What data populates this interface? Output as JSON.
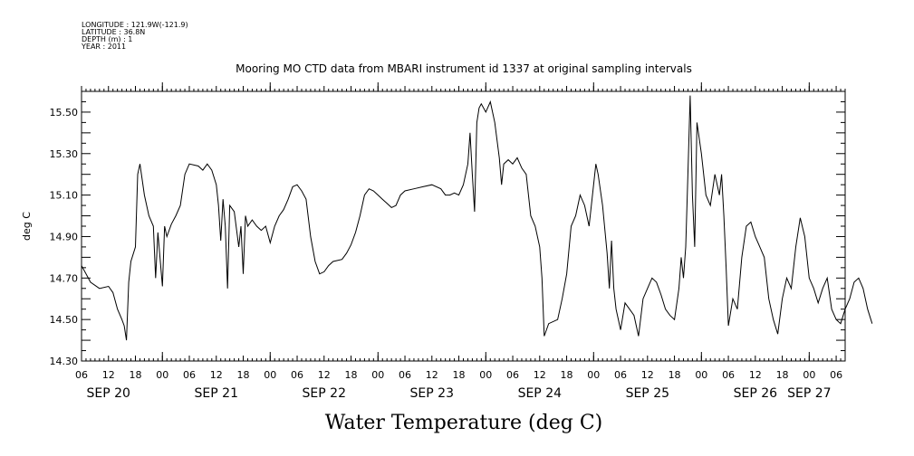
{
  "header": {
    "longitude": "LONGITUDE : 121.9W(-121.9)",
    "latitude": "LATITUDE : 36.8N",
    "depth": "DEPTH (m) : 1",
    "year": "YEAR : 2011"
  },
  "chart_data": {
    "type": "line",
    "title": "Mooring MO CTD data from MBARI instrument id 1337 at original sampling intervals",
    "ylabel": "deg C",
    "xlabel": "Water Temperature (deg C)",
    "ylim": [
      14.3,
      15.6
    ],
    "yticks": [
      "14.30",
      "14.50",
      "14.70",
      "14.90",
      "15.10",
      "15.30",
      "15.50"
    ],
    "xlim": [
      "SEP 20 06:00",
      "SEP 27 08:00"
    ],
    "hour_ticks": [
      "06",
      "12",
      "18",
      "00",
      "06",
      "12",
      "18",
      "00",
      "06",
      "12",
      "18",
      "00",
      "06",
      "12",
      "18",
      "00",
      "06",
      "12",
      "18",
      "00",
      "06",
      "12",
      "18",
      "00",
      "06",
      "12",
      "18",
      "00",
      "06"
    ],
    "date_labels": [
      "SEP 20",
      "SEP 21",
      "SEP 22",
      "SEP 23",
      "SEP 24",
      "SEP 25",
      "SEP 26",
      "SEP 27"
    ],
    "grid": false,
    "series": [
      {
        "points": [
          [
            "SEP 20 06:00",
            14.76
          ],
          [
            "SEP 20 07:00",
            14.72
          ],
          [
            "SEP 20 08:00",
            14.68
          ],
          [
            "SEP 20 10:00",
            14.65
          ],
          [
            "SEP 20 12:00",
            14.66
          ],
          [
            "SEP 20 13:00",
            14.63
          ],
          [
            "SEP 20 14:00",
            14.55
          ],
          [
            "SEP 20 15:00",
            14.5
          ],
          [
            "SEP 20 15:30",
            14.47
          ],
          [
            "SEP 20 16:00",
            14.4
          ],
          [
            "SEP 20 16:30",
            14.68
          ],
          [
            "SEP 20 17:00",
            14.78
          ],
          [
            "SEP 20 18:00",
            14.85
          ],
          [
            "SEP 20 18:30",
            15.2
          ],
          [
            "SEP 20 19:00",
            15.25
          ],
          [
            "SEP 20 20:00",
            15.1
          ],
          [
            "SEP 20 21:00",
            15.0
          ],
          [
            "SEP 20 22:00",
            14.95
          ],
          [
            "SEP 20 22:30",
            14.7
          ],
          [
            "SEP 20 23:00",
            14.92
          ],
          [
            "SEP 21 00:00",
            14.66
          ],
          [
            "SEP 21 00:30",
            14.95
          ],
          [
            "SEP 21 01:00",
            14.9
          ],
          [
            "SEP 21 02:00",
            14.96
          ],
          [
            "SEP 21 03:00",
            15.0
          ],
          [
            "SEP 21 04:00",
            15.05
          ],
          [
            "SEP 21 05:00",
            15.2
          ],
          [
            "SEP 21 06:00",
            15.25
          ],
          [
            "SEP 21 08:00",
            15.24
          ],
          [
            "SEP 21 09:00",
            15.22
          ],
          [
            "SEP 21 10:00",
            15.25
          ],
          [
            "SEP 21 11:00",
            15.22
          ],
          [
            "SEP 21 12:00",
            15.15
          ],
          [
            "SEP 21 12:30",
            15.05
          ],
          [
            "SEP 21 13:00",
            14.88
          ],
          [
            "SEP 21 13:30",
            15.08
          ],
          [
            "SEP 21 14:00",
            14.95
          ],
          [
            "SEP 21 14:30",
            14.65
          ],
          [
            "SEP 21 15:00",
            15.05
          ],
          [
            "SEP 21 16:00",
            15.02
          ],
          [
            "SEP 21 17:00",
            14.85
          ],
          [
            "SEP 21 17:30",
            14.95
          ],
          [
            "SEP 21 18:00",
            14.72
          ],
          [
            "SEP 21 18:30",
            15.0
          ],
          [
            "SEP 21 19:00",
            14.95
          ],
          [
            "SEP 21 20:00",
            14.98
          ],
          [
            "SEP 21 21:00",
            14.95
          ],
          [
            "SEP 21 22:00",
            14.93
          ],
          [
            "SEP 21 23:00",
            14.95
          ],
          [
            "SEP 22 00:00",
            14.87
          ],
          [
            "SEP 22 01:00",
            14.95
          ],
          [
            "SEP 22 02:00",
            15.0
          ],
          [
            "SEP 22 03:00",
            15.03
          ],
          [
            "SEP 22 04:00",
            15.08
          ],
          [
            "SEP 22 05:00",
            15.14
          ],
          [
            "SEP 22 06:00",
            15.15
          ],
          [
            "SEP 22 07:00",
            15.12
          ],
          [
            "SEP 22 08:00",
            15.08
          ],
          [
            "SEP 22 09:00",
            14.9
          ],
          [
            "SEP 22 10:00",
            14.78
          ],
          [
            "SEP 22 11:00",
            14.72
          ],
          [
            "SEP 22 12:00",
            14.73
          ],
          [
            "SEP 22 13:00",
            14.76
          ],
          [
            "SEP 22 14:00",
            14.78
          ],
          [
            "SEP 22 16:00",
            14.79
          ],
          [
            "SEP 22 17:00",
            14.82
          ],
          [
            "SEP 22 18:00",
            14.86
          ],
          [
            "SEP 22 19:00",
            14.92
          ],
          [
            "SEP 22 20:00",
            15.0
          ],
          [
            "SEP 22 21:00",
            15.1
          ],
          [
            "SEP 22 22:00",
            15.13
          ],
          [
            "SEP 22 23:00",
            15.12
          ],
          [
            "SEP 23 00:00",
            15.1
          ],
          [
            "SEP 23 01:00",
            15.08
          ],
          [
            "SEP 23 02:00",
            15.06
          ],
          [
            "SEP 23 03:00",
            15.04
          ],
          [
            "SEP 23 04:00",
            15.05
          ],
          [
            "SEP 23 05:00",
            15.1
          ],
          [
            "SEP 23 06:00",
            15.12
          ],
          [
            "SEP 23 08:00",
            15.13
          ],
          [
            "SEP 23 10:00",
            15.14
          ],
          [
            "SEP 23 12:00",
            15.15
          ],
          [
            "SEP 23 14:00",
            15.13
          ],
          [
            "SEP 23 15:00",
            15.1
          ],
          [
            "SEP 23 16:00",
            15.1
          ],
          [
            "SEP 23 17:00",
            15.11
          ],
          [
            "SEP 23 18:00",
            15.1
          ],
          [
            "SEP 23 19:00",
            15.15
          ],
          [
            "SEP 23 20:00",
            15.25
          ],
          [
            "SEP 23 20:30",
            15.4
          ],
          [
            "SEP 23 21:00",
            15.2
          ],
          [
            "SEP 23 21:30",
            15.02
          ],
          [
            "SEP 23 22:00",
            15.45
          ],
          [
            "SEP 23 22:30",
            15.52
          ],
          [
            "SEP 23 23:00",
            15.54
          ],
          [
            "SEP 24 00:00",
            15.5
          ],
          [
            "SEP 24 01:00",
            15.55
          ],
          [
            "SEP 24 02:00",
            15.45
          ],
          [
            "SEP 24 03:00",
            15.28
          ],
          [
            "SEP 24 03:30",
            15.15
          ],
          [
            "SEP 24 04:00",
            15.25
          ],
          [
            "SEP 24 05:00",
            15.27
          ],
          [
            "SEP 24 06:00",
            15.25
          ],
          [
            "SEP 24 07:00",
            15.28
          ],
          [
            "SEP 24 08:00",
            15.23
          ],
          [
            "SEP 24 09:00",
            15.2
          ],
          [
            "SEP 24 10:00",
            15.0
          ],
          [
            "SEP 24 11:00",
            14.95
          ],
          [
            "SEP 24 12:00",
            14.85
          ],
          [
            "SEP 24 12:30",
            14.7
          ],
          [
            "SEP 24 13:00",
            14.42
          ],
          [
            "SEP 24 14:00",
            14.48
          ],
          [
            "SEP 24 16:00",
            14.5
          ],
          [
            "SEP 24 17:00",
            14.6
          ],
          [
            "SEP 24 18:00",
            14.72
          ],
          [
            "SEP 24 19:00",
            14.95
          ],
          [
            "SEP 24 20:00",
            15.0
          ],
          [
            "SEP 24 21:00",
            15.1
          ],
          [
            "SEP 24 22:00",
            15.05
          ],
          [
            "SEP 24 23:00",
            14.95
          ],
          [
            "SEP 25 00:00",
            15.15
          ],
          [
            "SEP 25 00:30",
            15.25
          ],
          [
            "SEP 25 01:00",
            15.2
          ],
          [
            "SEP 25 02:00",
            15.05
          ],
          [
            "SEP 25 03:00",
            14.82
          ],
          [
            "SEP 25 03:30",
            14.65
          ],
          [
            "SEP 25 04:00",
            14.88
          ],
          [
            "SEP 25 04:30",
            14.65
          ],
          [
            "SEP 25 05:00",
            14.55
          ],
          [
            "SEP 25 06:00",
            14.45
          ],
          [
            "SEP 25 07:00",
            14.58
          ],
          [
            "SEP 25 08:00",
            14.55
          ],
          [
            "SEP 25 09:00",
            14.52
          ],
          [
            "SEP 25 10:00",
            14.42
          ],
          [
            "SEP 25 11:00",
            14.6
          ],
          [
            "SEP 25 12:00",
            14.65
          ],
          [
            "SEP 25 13:00",
            14.7
          ],
          [
            "SEP 25 14:00",
            14.68
          ],
          [
            "SEP 25 15:00",
            14.62
          ],
          [
            "SEP 25 16:00",
            14.55
          ],
          [
            "SEP 25 17:00",
            14.52
          ],
          [
            "SEP 25 18:00",
            14.5
          ],
          [
            "SEP 25 19:00",
            14.65
          ],
          [
            "SEP 25 19:30",
            14.8
          ],
          [
            "SEP 25 20:00",
            14.7
          ],
          [
            "SEP 25 20:30",
            14.85
          ],
          [
            "SEP 25 21:00",
            15.2
          ],
          [
            "SEP 25 21:30",
            15.58
          ],
          [
            "SEP 25 22:00",
            15.1
          ],
          [
            "SEP 25 22:30",
            14.85
          ],
          [
            "SEP 25 23:00",
            15.45
          ],
          [
            "SEP 26 00:00",
            15.3
          ],
          [
            "SEP 26 01:00",
            15.1
          ],
          [
            "SEP 26 02:00",
            15.05
          ],
          [
            "SEP 26 03:00",
            15.2
          ],
          [
            "SEP 26 04:00",
            15.1
          ],
          [
            "SEP 26 04:30",
            15.2
          ],
          [
            "SEP 26 05:00",
            15.0
          ],
          [
            "SEP 26 05:30",
            14.75
          ],
          [
            "SEP 26 06:00",
            14.47
          ],
          [
            "SEP 26 07:00",
            14.6
          ],
          [
            "SEP 26 08:00",
            14.55
          ],
          [
            "SEP 26 09:00",
            14.8
          ],
          [
            "SEP 26 10:00",
            14.95
          ],
          [
            "SEP 26 11:00",
            14.97
          ],
          [
            "SEP 26 12:00",
            14.9
          ],
          [
            "SEP 26 13:00",
            14.85
          ],
          [
            "SEP 26 14:00",
            14.8
          ],
          [
            "SEP 26 15:00",
            14.6
          ],
          [
            "SEP 26 16:00",
            14.5
          ],
          [
            "SEP 26 17:00",
            14.43
          ],
          [
            "SEP 26 18:00",
            14.6
          ],
          [
            "SEP 26 19:00",
            14.7
          ],
          [
            "SEP 26 20:00",
            14.65
          ],
          [
            "SEP 26 21:00",
            14.85
          ],
          [
            "SEP 26 22:00",
            14.99
          ],
          [
            "SEP 26 23:00",
            14.9
          ],
          [
            "SEP 27 00:00",
            14.7
          ],
          [
            "SEP 27 01:00",
            14.65
          ],
          [
            "SEP 27 02:00",
            14.58
          ],
          [
            "SEP 27 03:00",
            14.65
          ],
          [
            "SEP 27 04:00",
            14.7
          ],
          [
            "SEP 27 05:00",
            14.55
          ],
          [
            "SEP 27 06:00",
            14.5
          ],
          [
            "SEP 27 07:00",
            14.48
          ],
          [
            "SEP 27 08:00",
            14.55
          ],
          [
            "SEP 27 09:00",
            14.6
          ],
          [
            "SEP 27 10:00",
            14.68
          ],
          [
            "SEP 27 11:00",
            14.7
          ],
          [
            "SEP 27 12:00",
            14.65
          ],
          [
            "SEP 27 13:00",
            14.55
          ],
          [
            "SEP 27 14:00",
            14.48
          ]
        ]
      }
    ]
  }
}
